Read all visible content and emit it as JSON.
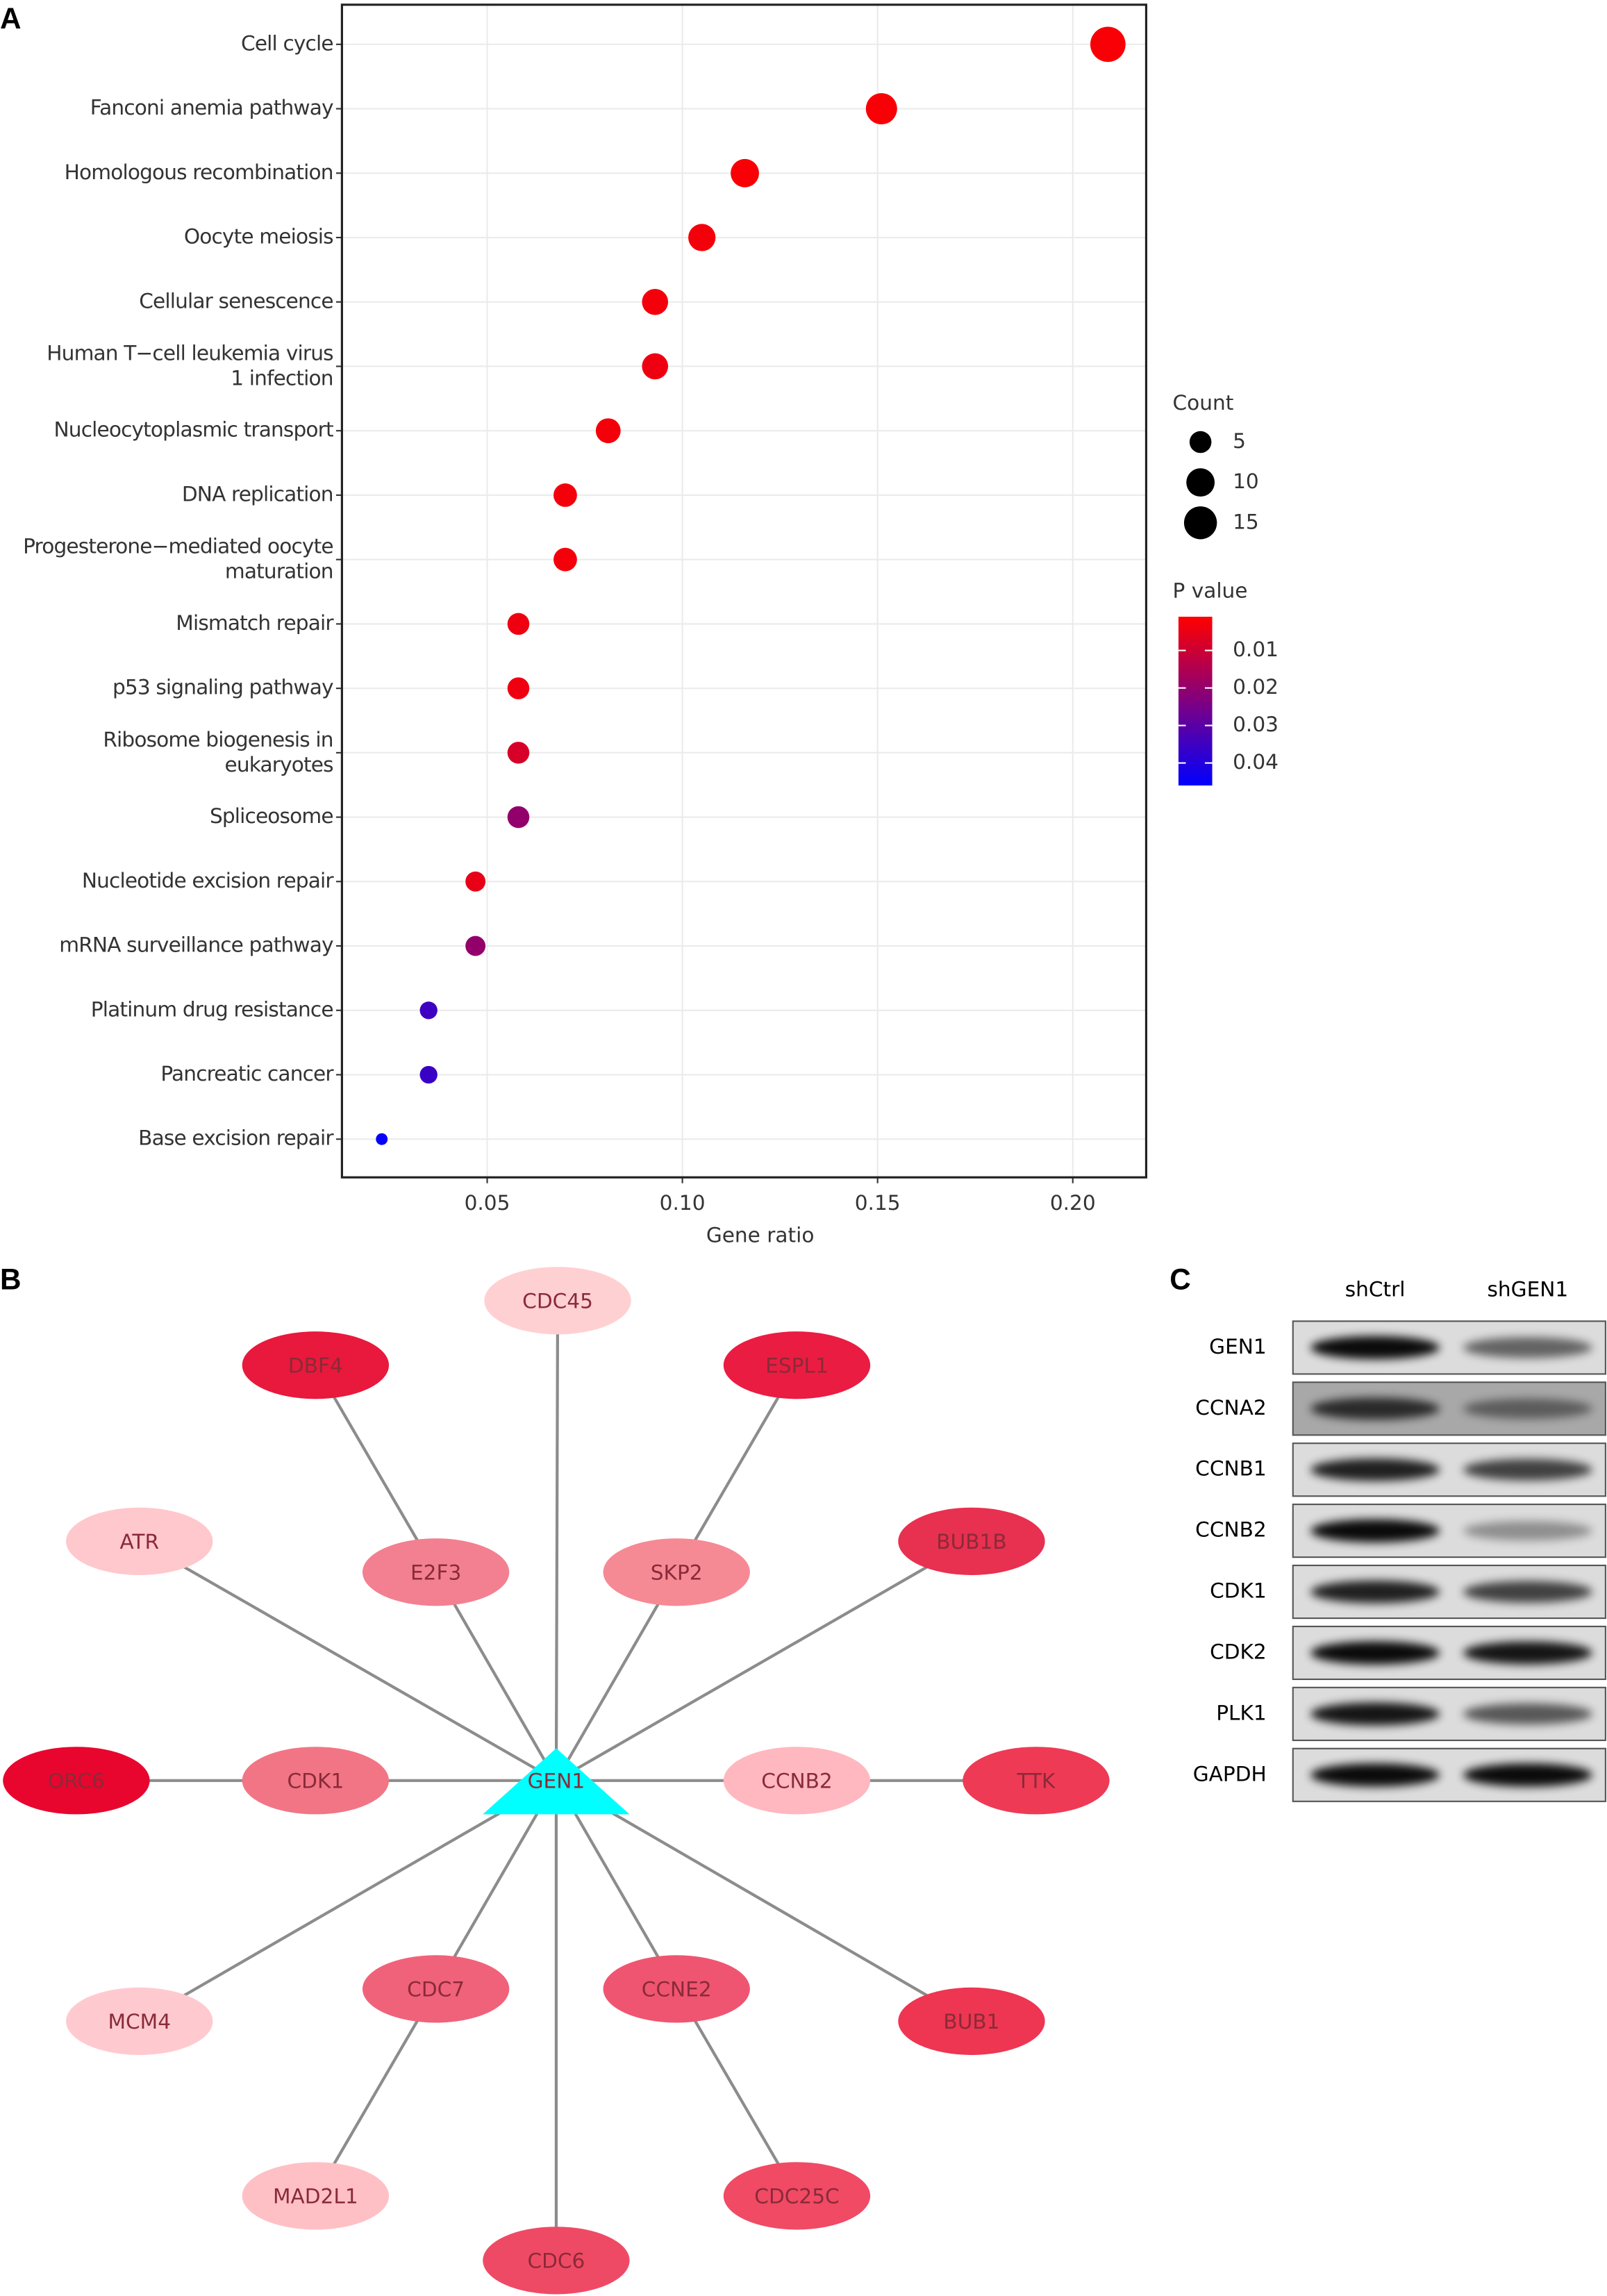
{
  "chart_data": {
    "type": "dot",
    "categories": [
      "Cell cycle",
      "Fanconi anemia pathway",
      "Homologous recombination",
      "Oocyte meiosis",
      "Cellular senescence",
      "Human T−cell leukemia virus\n1 infection",
      "Nucleocytoplasmic transport",
      "DNA replication",
      "Progesterone−mediated oocyte\nmaturation",
      "Mismatch repair",
      "p53 signaling pathway",
      "Ribosome biogenesis in\neukaryotes",
      "Spliceosome",
      "Nucleotide excision repair",
      "mRNA surveillance pathway",
      "Platinum drug resistance",
      "Pancreatic cancer",
      "Base excision repair"
    ],
    "values": [
      0.209,
      0.151,
      0.116,
      0.105,
      0.093,
      0.093,
      0.081,
      0.07,
      0.07,
      0.058,
      0.058,
      0.058,
      0.058,
      0.047,
      0.047,
      0.035,
      0.035,
      0.023
    ],
    "counts": [
      18,
      13,
      10,
      9,
      8,
      8,
      7,
      6,
      6,
      5,
      5,
      5,
      5,
      4,
      4,
      3,
      3,
      2
    ],
    "p_values": [
      0.002,
      0.002,
      0.002,
      0.003,
      0.003,
      0.004,
      0.003,
      0.003,
      0.003,
      0.004,
      0.004,
      0.008,
      0.02,
      0.005,
      0.02,
      0.035,
      0.036,
      0.045
    ],
    "xlim": [
      0.0128,
      0.2188
    ],
    "xticks": [
      0.05,
      {
        "value": 0.1,
        "label": "0.10"
      },
      0.15,
      {
        "value": 0.2,
        "label": "0.20"
      }
    ],
    "x_label": "Gene ratio",
    "grid": true,
    "size_legend_title": "Count",
    "size_legend": [
      5,
      10,
      15
    ],
    "color_legend_title": "P value",
    "color_low": "#ff0000",
    "color_high": "#0000ff",
    "clim": [
      0.001,
      0.046
    ],
    "color_ticks": [
      0.01,
      0.02,
      0.03,
      0.04
    ]
  },
  "panels": [
    "A",
    "B",
    "C"
  ],
  "network": {
    "nodes": [
      {
        "label": "GEN1",
        "color": "#00ffff"
      },
      {
        "label": "CDC45",
        "color": "#ffd0d2"
      },
      {
        "label": "DBF4",
        "color": "#e8193c"
      },
      {
        "label": "ESPL1",
        "color": "#ea1c42"
      },
      {
        "label": "ATR",
        "color": "#ffc8cc"
      },
      {
        "label": "E2F3",
        "color": "#f28090"
      },
      {
        "label": "SKP2",
        "color": "#f58a95"
      },
      {
        "label": "BUB1B",
        "color": "#e83050"
      },
      {
        "label": "ORC6",
        "color": "#e8062e"
      },
      {
        "label": "CDK1",
        "color": "#f27585"
      },
      {
        "label": "CCNB2",
        "color": "#ffb8bf"
      },
      {
        "label": "TTK",
        "color": "#ee3a55"
      },
      {
        "label": "MCM4",
        "color": "#ffcacf"
      },
      {
        "label": "CDC7",
        "color": "#f0627a"
      },
      {
        "label": "CCNE2",
        "color": "#ef5570"
      },
      {
        "label": "BUB1",
        "color": "#ee3552"
      },
      {
        "label": "MAD2L1",
        "color": "#ffc0c5"
      },
      {
        "label": "CDC25C",
        "color": "#f04a65"
      },
      {
        "label": "CDC6",
        "color": "#ef4a65"
      }
    ],
    "edges": [
      [
        "GEN1",
        "CDC45"
      ],
      [
        "GEN1",
        "ATR"
      ],
      [
        "GEN1",
        "E2F3"
      ],
      [
        "GEN1",
        "SKP2"
      ],
      [
        "GEN1",
        "BUB1B"
      ],
      [
        "GEN1",
        "CDK1"
      ],
      [
        "GEN1",
        "CCNB2"
      ],
      [
        "GEN1",
        "MCM4"
      ],
      [
        "GEN1",
        "CDC7"
      ],
      [
        "GEN1",
        "CCNE2"
      ],
      [
        "GEN1",
        "BUB1"
      ],
      [
        "GEN1",
        "CDC6"
      ],
      [
        "E2F3",
        "DBF4"
      ],
      [
        "SKP2",
        "ESPL1"
      ],
      [
        "CDK1",
        "ORC6"
      ],
      [
        "CCNB2",
        "TTK"
      ],
      [
        "CDC7",
        "MAD2L1"
      ],
      [
        "CCNE2",
        "CDC25C"
      ]
    ]
  },
  "western_blot": {
    "columns": [
      "shCtrl",
      "shGEN1"
    ],
    "rows": [
      "GEN1",
      "CCNA2",
      "CCNB1",
      "CCNB2",
      "CDK1",
      "CDK2",
      "PLK1",
      "GAPDH"
    ]
  }
}
